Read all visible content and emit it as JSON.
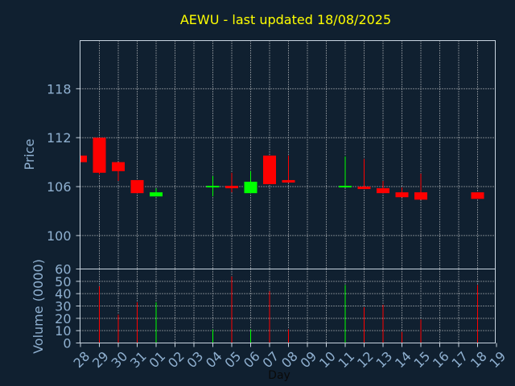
{
  "chart_data": [
    {
      "type": "candlestick",
      "title": "AEWU - last updated 18/08/2025",
      "ylabel": "Price",
      "ylim": [
        95.9,
        123.9
      ],
      "yticks": [
        100,
        106,
        112,
        118
      ],
      "grid": true,
      "x": [
        "28",
        "29",
        "30",
        "31",
        "01",
        "02",
        "03",
        "04",
        "05",
        "06",
        "07",
        "08",
        "09",
        "10",
        "11",
        "12",
        "13",
        "14",
        "15",
        "16",
        "17",
        "18",
        "19"
      ],
      "candles": [
        {
          "x": "28",
          "open": 109.8,
          "high": 109.8,
          "low": 109.0,
          "close": 109.0
        },
        {
          "x": "29",
          "open": 112.0,
          "high": 112.0,
          "low": 107.5,
          "close": 107.7
        },
        {
          "x": "30",
          "open": 109.0,
          "high": 109.0,
          "low": 106.7,
          "close": 107.9
        },
        {
          "x": "31",
          "open": 106.8,
          "high": 106.8,
          "low": 105.2,
          "close": 105.2
        },
        {
          "x": "01",
          "open": 104.8,
          "high": 105.8,
          "low": 104.8,
          "close": 105.3
        },
        {
          "x": "04",
          "open": 106.0,
          "high": 107.3,
          "low": 104.8,
          "close": 106.1
        },
        {
          "x": "05",
          "open": 106.1,
          "high": 107.7,
          "low": 105.3,
          "close": 105.8
        },
        {
          "x": "06",
          "open": 105.2,
          "high": 107.9,
          "low": 105.2,
          "close": 106.6
        },
        {
          "x": "07",
          "open": 109.8,
          "high": 109.8,
          "low": 106.3,
          "close": 106.3
        },
        {
          "x": "08",
          "open": 106.8,
          "high": 109.8,
          "low": 106.5,
          "close": 106.5
        },
        {
          "x": "11",
          "open": 106.0,
          "high": 109.7,
          "low": 106.0,
          "close": 106.1
        },
        {
          "x": "12",
          "open": 106.0,
          "high": 109.4,
          "low": 105.7,
          "close": 105.7
        },
        {
          "x": "13",
          "open": 105.8,
          "high": 106.7,
          "low": 105.2,
          "close": 105.2
        },
        {
          "x": "14",
          "open": 105.3,
          "high": 105.9,
          "low": 104.7,
          "close": 104.7
        },
        {
          "x": "15",
          "open": 105.3,
          "high": 107.6,
          "low": 104.4,
          "close": 104.4
        },
        {
          "x": "18",
          "open": 105.3,
          "high": 105.3,
          "low": 104.5,
          "close": 104.5
        }
      ]
    },
    {
      "type": "bar",
      "ylabel": "Volume (0000)",
      "xlabel": "Day",
      "ylim": [
        0,
        60
      ],
      "yticks": [
        0,
        10,
        20,
        30,
        40,
        50,
        60
      ],
      "grid": true,
      "categories": [
        "28",
        "29",
        "30",
        "31",
        "01",
        "02",
        "03",
        "04",
        "05",
        "06",
        "07",
        "08",
        "09",
        "10",
        "11",
        "12",
        "13",
        "14",
        "15",
        "16",
        "17",
        "18",
        "19"
      ],
      "values": [
        0,
        46,
        23,
        33,
        33,
        0,
        0,
        11,
        54,
        11,
        42,
        11,
        0,
        0,
        47,
        29,
        31,
        9,
        19,
        0,
        0,
        47,
        0
      ],
      "directions": [
        "down",
        "down",
        "down",
        "down",
        "up",
        "",
        "",
        "up",
        "down",
        "up",
        "down",
        "down",
        "",
        "",
        "up",
        "down",
        "down",
        "down",
        "down",
        "",
        "",
        "down",
        ""
      ]
    }
  ],
  "colors": {
    "background": "#102030",
    "up": "#00ff00",
    "down": "#ff0000",
    "title": "#ffff00",
    "axis_text": "#8fb0d0",
    "axis_line": "#c8d4e0",
    "grid": "#dddddd"
  }
}
